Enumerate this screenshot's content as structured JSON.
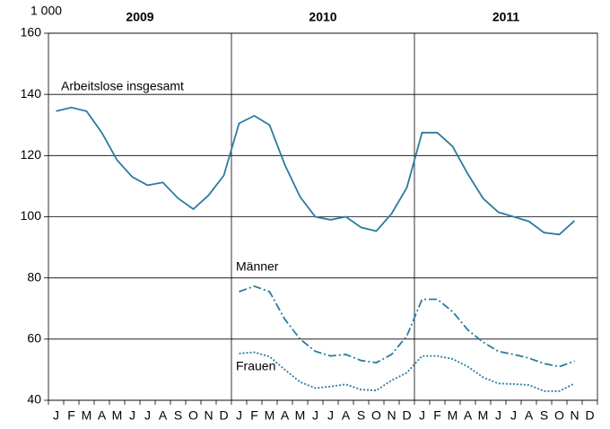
{
  "chart_data": {
    "type": "line",
    "unit_label": "1 000",
    "year_labels": [
      "2009",
      "2010",
      "2011"
    ],
    "categories": [
      "J",
      "F",
      "M",
      "A",
      "M",
      "J",
      "J",
      "A",
      "S",
      "O",
      "N",
      "D",
      "J",
      "F",
      "M",
      "A",
      "M",
      "J",
      "J",
      "A",
      "S",
      "O",
      "N",
      "D",
      "J",
      "F",
      "M",
      "A",
      "M",
      "J",
      "J",
      "A",
      "S",
      "O",
      "N",
      "D"
    ],
    "ylim": [
      40,
      160
    ],
    "yticks": [
      40,
      60,
      80,
      100,
      120,
      140,
      160
    ],
    "grid": true,
    "series": [
      {
        "name": "Arbeitslose insgesamt",
        "color": "#2b7b9e",
        "dash": "none",
        "values": [
          134.5,
          135.7,
          134.5,
          127.5,
          118.5,
          113,
          110.3,
          111.2,
          106,
          102.5,
          107,
          113.5,
          130.5,
          133,
          130,
          117,
          106.5,
          100,
          99,
          100,
          96.5,
          95.3,
          101,
          109.5,
          127.5,
          127.5,
          123,
          114,
          106,
          101.5,
          100,
          98.5,
          94.8,
          94.2,
          98.7,
          null
        ]
      },
      {
        "name": "Männer",
        "color": "#2b7b9e",
        "dash": "9,3,2,3",
        "values": [
          null,
          null,
          null,
          null,
          null,
          null,
          null,
          null,
          null,
          null,
          null,
          null,
          75.5,
          77.3,
          75.5,
          66.5,
          60,
          56,
          54.5,
          55,
          53,
          52.3,
          55,
          61,
          73,
          73,
          69,
          63,
          59,
          56,
          55,
          53.8,
          52,
          51,
          52.8,
          null
        ]
      },
      {
        "name": "Frauen",
        "color": "#2b7b9e",
        "dash": "2,2",
        "values": [
          null,
          null,
          null,
          null,
          null,
          null,
          null,
          null,
          null,
          null,
          null,
          null,
          55.3,
          55.7,
          54.3,
          50,
          46,
          44,
          44.5,
          45.2,
          43.5,
          43.2,
          46.5,
          49,
          54.5,
          54.5,
          53.5,
          51,
          47.5,
          45.5,
          45.3,
          45,
          43,
          43,
          45.5,
          null
        ]
      }
    ]
  }
}
